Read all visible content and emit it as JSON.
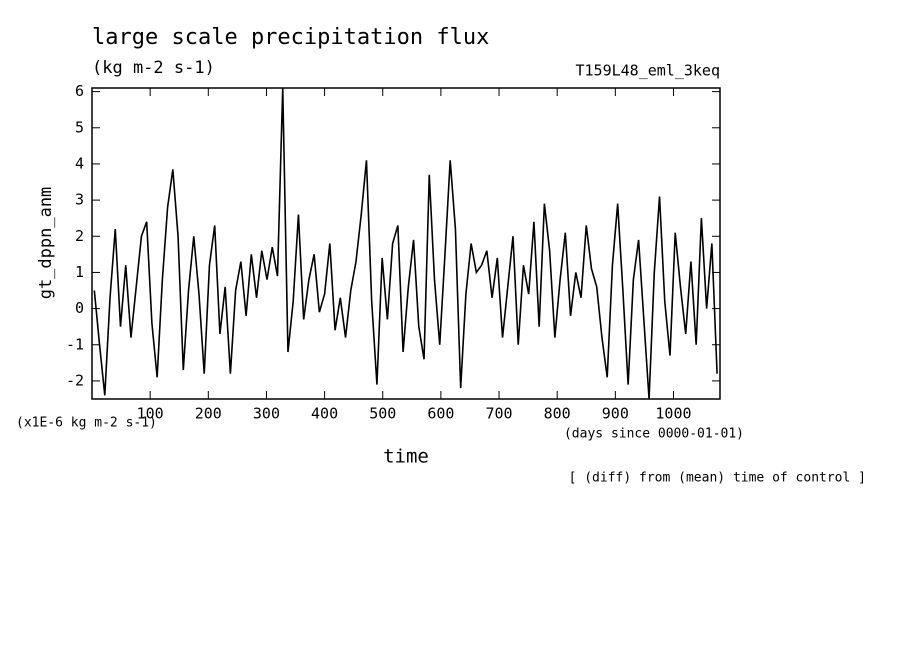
{
  "chart_data": {
    "type": "line",
    "title": "large scale precipitation flux",
    "subtitle": "(kg m-2 s-1)",
    "run_label": "T159L48_eml_3keq",
    "ylabel": "gt_dppn_anm",
    "y_unit_label": "(x1E-6 kg m-2 s-1)",
    "xlabel": "time",
    "x_unit_label": "(days since 0000-01-01)",
    "note": "[ (diff) from (mean) time of control ]",
    "xlim": [
      0,
      1080
    ],
    "ylim": [
      -2.5,
      6.1
    ],
    "xticks": [
      100,
      200,
      300,
      400,
      500,
      600,
      700,
      800,
      900,
      1000
    ],
    "yticks": [
      -2,
      -1,
      0,
      1,
      2,
      3,
      4,
      5,
      6
    ],
    "x": [
      4,
      13,
      22,
      31,
      40,
      49,
      58,
      67,
      76,
      85,
      94,
      103,
      112,
      121,
      130,
      139,
      148,
      157,
      166,
      175,
      184,
      193,
      202,
      211,
      220,
      229,
      238,
      247,
      256,
      265,
      274,
      283,
      292,
      301,
      310,
      319,
      328,
      337,
      346,
      355,
      364,
      373,
      382,
      391,
      400,
      409,
      418,
      427,
      436,
      445,
      454,
      463,
      472,
      481,
      490,
      499,
      508,
      517,
      526,
      535,
      544,
      553,
      562,
      571,
      580,
      589,
      598,
      607,
      616,
      625,
      634,
      643,
      652,
      661,
      670,
      679,
      688,
      697,
      706,
      715,
      724,
      733,
      742,
      751,
      760,
      769,
      778,
      787,
      796,
      805,
      814,
      823,
      832,
      841,
      850,
      859,
      868,
      877,
      886,
      895,
      904,
      913,
      922,
      931,
      940,
      949,
      958,
      967,
      976,
      985,
      994,
      1003,
      1012,
      1021,
      1030,
      1039,
      1048,
      1057,
      1066,
      1075
    ],
    "series": [
      {
        "color": "#000000",
        "values": [
          0.5,
          -1.0,
          -2.4,
          0.3,
          2.2,
          -0.5,
          1.2,
          -0.8,
          0.6,
          2.0,
          2.4,
          -0.4,
          -1.9,
          0.8,
          2.8,
          3.85,
          2.0,
          -1.7,
          0.5,
          2.0,
          0.4,
          -1.8,
          1.2,
          2.3,
          -0.7,
          0.6,
          -1.8,
          0.5,
          1.3,
          -0.2,
          1.5,
          0.3,
          1.6,
          0.8,
          1.7,
          0.9,
          6.1,
          -1.2,
          0.2,
          2.6,
          -0.3,
          0.8,
          1.5,
          -0.1,
          0.4,
          1.8,
          -0.6,
          0.3,
          -0.8,
          0.5,
          1.3,
          2.6,
          4.1,
          0.2,
          -2.1,
          1.4,
          -0.3,
          1.8,
          2.3,
          -1.2,
          0.6,
          1.9,
          -0.5,
          -1.4,
          3.7,
          0.8,
          -1.0,
          1.5,
          4.1,
          2.2,
          -2.2,
          0.4,
          1.8,
          1.0,
          1.2,
          1.6,
          0.3,
          1.4,
          -0.8,
          0.6,
          2.0,
          -1.0,
          1.2,
          0.4,
          2.4,
          -0.5,
          2.9,
          1.6,
          -0.8,
          0.8,
          2.1,
          -0.2,
          1.0,
          0.3,
          2.3,
          1.1,
          0.6,
          -0.8,
          -1.9,
          1.2,
          2.9,
          0.5,
          -2.1,
          0.8,
          1.9,
          -0.3,
          -2.5,
          1.0,
          3.1,
          0.2,
          -1.3,
          2.1,
          0.6,
          -0.7,
          1.3,
          -1.0,
          2.5,
          0.0,
          1.8,
          -1.8
        ]
      }
    ]
  }
}
